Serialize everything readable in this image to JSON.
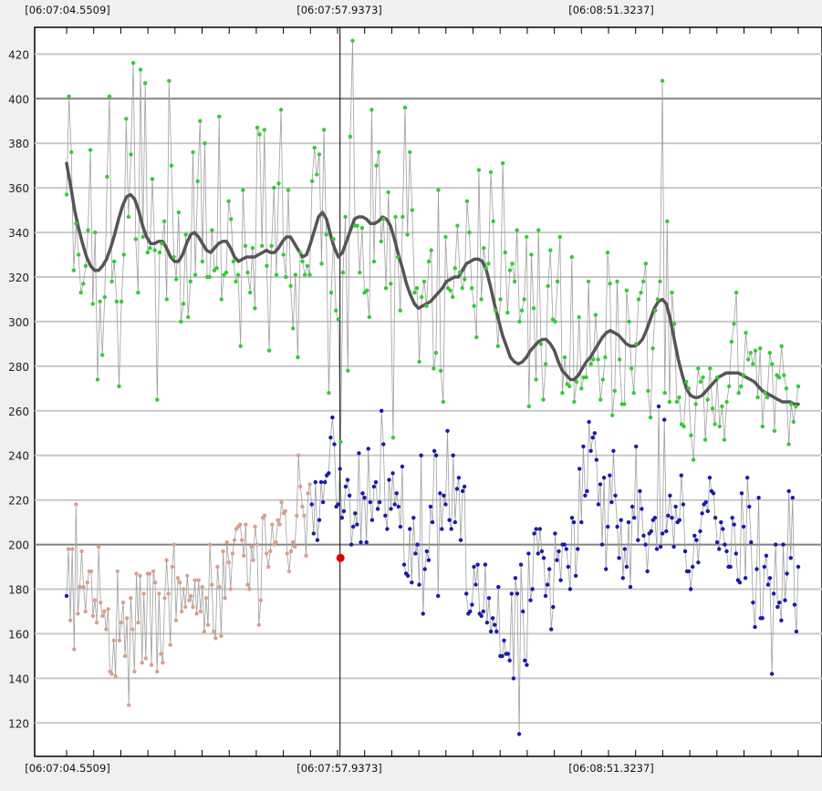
{
  "chart_data": {
    "type": "scatter",
    "title": "",
    "xlabel": "",
    "ylabel": "",
    "grid": true,
    "ylim": [
      105,
      432
    ],
    "y_ticks": [
      120,
      140,
      160,
      180,
      200,
      220,
      240,
      260,
      280,
      300,
      320,
      340,
      360,
      380,
      400,
      420
    ],
    "reference_lines": [
      200,
      400
    ],
    "time_labels": [
      "[06:07:04.5509]",
      "[06:07:57.9373]",
      "[06:08:51.3237]"
    ],
    "cursor_index": 145,
    "cursor_value": 194,
    "colors": {
      "upper_series": "#33cc33",
      "lower_series_early": "#d9a08c",
      "lower_series_late": "#1a1aaa",
      "trend_line": "#555555",
      "connector_line": "#a0a0a0",
      "cursor_marker": "#e00000"
    },
    "series": [
      {
        "values": [
          357,
          401,
          376,
          323,
          344,
          330,
          313,
          317,
          325,
          341,
          377,
          308,
          340,
          274,
          309,
          285,
          311,
          365,
          401,
          318,
          327,
          309,
          271,
          309,
          330,
          391,
          347,
          375,
          416,
          337,
          313,
          413,
          338,
          407,
          331,
          333,
          364,
          332,
          265,
          331,
          335,
          345,
          310,
          408,
          370,
          329,
          319,
          349,
          300,
          308,
          339,
          302,
          318,
          376,
          321,
          363,
          390,
          327,
          380,
          320,
          320,
          341,
          323,
          324,
          392,
          310,
          321,
          322,
          354,
          346,
          327,
          318,
          321,
          289,
          359,
          334,
          322,
          313,
          333,
          306,
          387,
          384,
          334,
          386,
          325,
          287,
          334,
          360,
          321,
          362,
          395,
          330,
          320,
          359,
          316,
          297,
          321,
          284,
          331,
          327,
          321,
          325,
          321,
          363,
          378,
          366,
          375,
          326,
          386,
          339,
          268,
          313,
          337,
          305,
          301,
          246,
          322,
          347,
          278,
          383,
          426,
          343,
          343,
          322,
          342,
          313,
          314,
          302,
          395,
          327,
          370,
          376,
          336,
          346,
          315,
          358,
          317,
          248,
          347,
          329,
          305,
          347,
          396,
          339,
          376,
          350,
          313,
          315,
          282,
          311,
          318,
          307,
          327,
          332,
          279,
          286,
          359,
          278,
          264,
          338,
          315,
          314,
          311,
          324,
          343,
          322,
          315,
          319,
          354,
          340,
          315,
          307,
          293,
          368,
          310,
          333,
          324,
          326,
          367,
          345,
          305,
          289,
          310,
          371,
          331,
          304,
          323,
          326,
          318,
          341,
          300,
          305,
          310,
          338,
          262,
          330,
          306,
          274,
          341,
          290,
          265,
          281,
          316,
          332,
          301,
          300,
          318,
          338,
          268,
          284,
          272,
          271,
          329,
          264,
          273,
          302,
          270,
          275,
          275,
          318,
          281,
          283,
          303,
          283,
          265,
          274,
          284,
          331,
          317,
          258,
          269,
          318,
          283,
          263,
          263,
          314,
          300,
          279,
          268,
          290,
          310,
          313,
          318,
          326,
          269,
          257,
          288,
          305,
          310,
          318,
          408,
          268,
          345,
          264,
          313,
          299,
          264,
          266,
          254,
          253,
          273,
          270,
          249,
          238,
          263,
          279,
          273,
          275,
          247,
          265,
          279,
          261,
          254,
          275,
          253,
          262,
          247,
          264,
          271,
          291,
          299,
          313,
          268,
          271,
          276,
          295,
          283,
          286,
          281,
          287,
          266,
          288,
          253,
          268,
          266,
          286,
          281,
          251,
          276,
          275,
          289,
          276,
          270,
          245,
          263,
          255,
          262,
          271
        ]
      },
      {
        "values": [
          177,
          198,
          166,
          198,
          153,
          218,
          169,
          181,
          197,
          181,
          170,
          183,
          188,
          188,
          168,
          175,
          165,
          199,
          174,
          168,
          170,
          162,
          171,
          143,
          142,
          157,
          141,
          188,
          157,
          165,
          174,
          150,
          167,
          128,
          176,
          162,
          143,
          187,
          165,
          186,
          147,
          178,
          149,
          187,
          187,
          146,
          188,
          183,
          143,
          178,
          151,
          147,
          176,
          193,
          178,
          155,
          190,
          200,
          166,
          185,
          183,
          170,
          180,
          172,
          186,
          175,
          177,
          172,
          184,
          169,
          184,
          170,
          181,
          161,
          176,
          164,
          200,
          182,
          161,
          158,
          190,
          181,
          159,
          197,
          176,
          201,
          192,
          180,
          196,
          202,
          207,
          208,
          209,
          202,
          195,
          209,
          182,
          180,
          199,
          193,
          208,
          200,
          164,
          175,
          212,
          213,
          196,
          190,
          197,
          209,
          200,
          201,
          211,
          209,
          219,
          214,
          215,
          196,
          188,
          197,
          201,
          199,
          213,
          240,
          226,
          217,
          213,
          195,
          223,
          227,
          218,
          205,
          228,
          202,
          211,
          228,
          219,
          228,
          231,
          232,
          248,
          257,
          245,
          217,
          218,
          234,
          212,
          215,
          226,
          229,
          222,
          200,
          208,
          214,
          209,
          241,
          201,
          223,
          221,
          201,
          243,
          219,
          211,
          226,
          228,
          216,
          219,
          260,
          245,
          213,
          207,
          229,
          216,
          232,
          218,
          223,
          217,
          208,
          235,
          191,
          187,
          186,
          207,
          183,
          212,
          196,
          200,
          182,
          240,
          169,
          189,
          197,
          193,
          217,
          210,
          242,
          240,
          177,
          223,
          207,
          222,
          218,
          251,
          211,
          207,
          240,
          210,
          225,
          230,
          202,
          224,
          226,
          178,
          169,
          170,
          173,
          190,
          182,
          191,
          169,
          168,
          170,
          191,
          165,
          176,
          161,
          167,
          164,
          161,
          181,
          150,
          150,
          157,
          151,
          151,
          148,
          178,
          140,
          185,
          178,
          115,
          191,
          170,
          148,
          146,
          196,
          175,
          180,
          205,
          207,
          196,
          207,
          197,
          194,
          177,
          182,
          189,
          162,
          172,
          205,
          193,
          197,
          184,
          200,
          200,
          198,
          190,
          180,
          212,
          210,
          186,
          198,
          234,
          210,
          244,
          222,
          224,
          255,
          242,
          248,
          250,
          238,
          218,
          227,
          200,
          230,
          189,
          208,
          231,
          219,
          242,
          222,
          208,
          194,
          211,
          185,
          198,
          190,
          210,
          181,
          217,
          212,
          244,
          202,
          224,
          216,
          204,
          200,
          188,
          205,
          206,
          211,
          212,
          198,
          262,
          199,
          205,
          256,
          206,
          213,
          222,
          212,
          199,
          217,
          210,
          211,
          231,
          218,
          197,
          188,
          188,
          180,
          190,
          204,
          202,
          192,
          206,
          214,
          218,
          219,
          215,
          230,
          224,
          223,
          212,
          201,
          198,
          210,
          207,
          200,
          197,
          190,
          190,
          212,
          209,
          196,
          184,
          183,
          223,
          208,
          185,
          230,
          217,
          201,
          174,
          163,
          189,
          221,
          167,
          167,
          190,
          195,
          182,
          185,
          142,
          178,
          200,
          172,
          174,
          166,
          200,
          175,
          187,
          224,
          194,
          221,
          173,
          161,
          190
        ]
      },
      {
        "values": [
          371,
          361,
          350,
          342,
          335,
          329,
          325,
          323,
          323,
          325,
          328,
          333,
          339,
          346,
          352,
          356,
          357,
          355,
          350,
          343,
          338,
          335,
          335,
          336,
          336,
          333,
          329,
          327,
          327,
          330,
          335,
          339,
          340,
          338,
          335,
          332,
          331,
          333,
          335,
          336,
          336,
          333,
          329,
          327,
          328,
          329,
          329,
          329,
          330,
          331,
          332,
          331,
          331,
          333,
          336,
          338,
          338,
          335,
          332,
          329,
          330,
          335,
          341,
          347,
          349,
          346,
          339,
          333,
          329,
          331,
          336,
          341,
          346,
          347,
          347,
          346,
          344,
          344,
          345,
          347,
          346,
          343,
          337,
          330,
          324,
          317,
          312,
          308,
          306,
          307,
          308,
          309,
          311,
          313,
          315,
          318,
          319,
          320,
          320,
          323,
          326,
          327,
          328,
          328,
          327,
          323,
          316,
          308,
          301,
          294,
          289,
          284,
          282,
          281,
          282,
          284,
          287,
          289,
          291,
          292,
          292,
          290,
          287,
          282,
          278,
          276,
          274,
          274,
          276,
          279,
          282,
          284,
          287,
          290,
          293,
          295,
          296,
          295,
          294,
          292,
          290,
          289,
          289,
          290,
          292,
          296,
          301,
          306,
          309,
          310,
          308,
          301,
          292,
          283,
          276,
          270,
          267,
          266,
          266,
          267,
          269,
          271,
          273,
          275,
          276,
          277,
          277,
          277,
          277,
          276,
          275,
          274,
          273,
          271,
          269,
          268,
          267,
          266,
          265,
          264,
          264,
          264,
          263,
          263
        ]
      }
    ]
  }
}
